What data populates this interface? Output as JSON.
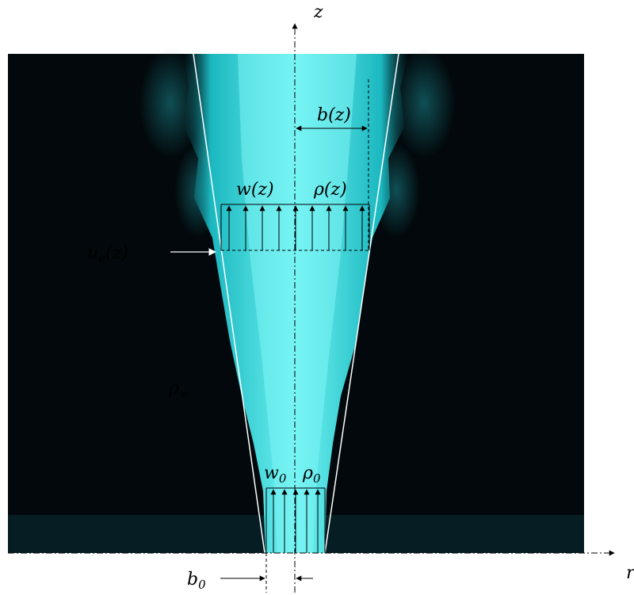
{
  "axes": {
    "vertical": "z",
    "horizontal": "r"
  },
  "labels": {
    "plume_halfwidth": "b(z)",
    "velocity_profile": "w(z)",
    "density_profile": "ρ(z)",
    "entrainment_velocity": {
      "base": "u",
      "sub": "e",
      "suffix": "(z)"
    },
    "ambient_density": {
      "base": "ρ",
      "sub": "∞"
    },
    "source_velocity": {
      "base": "w",
      "sub": "0"
    },
    "source_density": {
      "base": "ρ",
      "sub": "0"
    },
    "source_halfwidth": {
      "base": "b",
      "sub": "0"
    }
  },
  "colors": {
    "background": "#000000",
    "plume": "#2fe6e6",
    "plume_core": "#7ff5f5",
    "lines": "#000000",
    "edges": "#ffffff"
  }
}
